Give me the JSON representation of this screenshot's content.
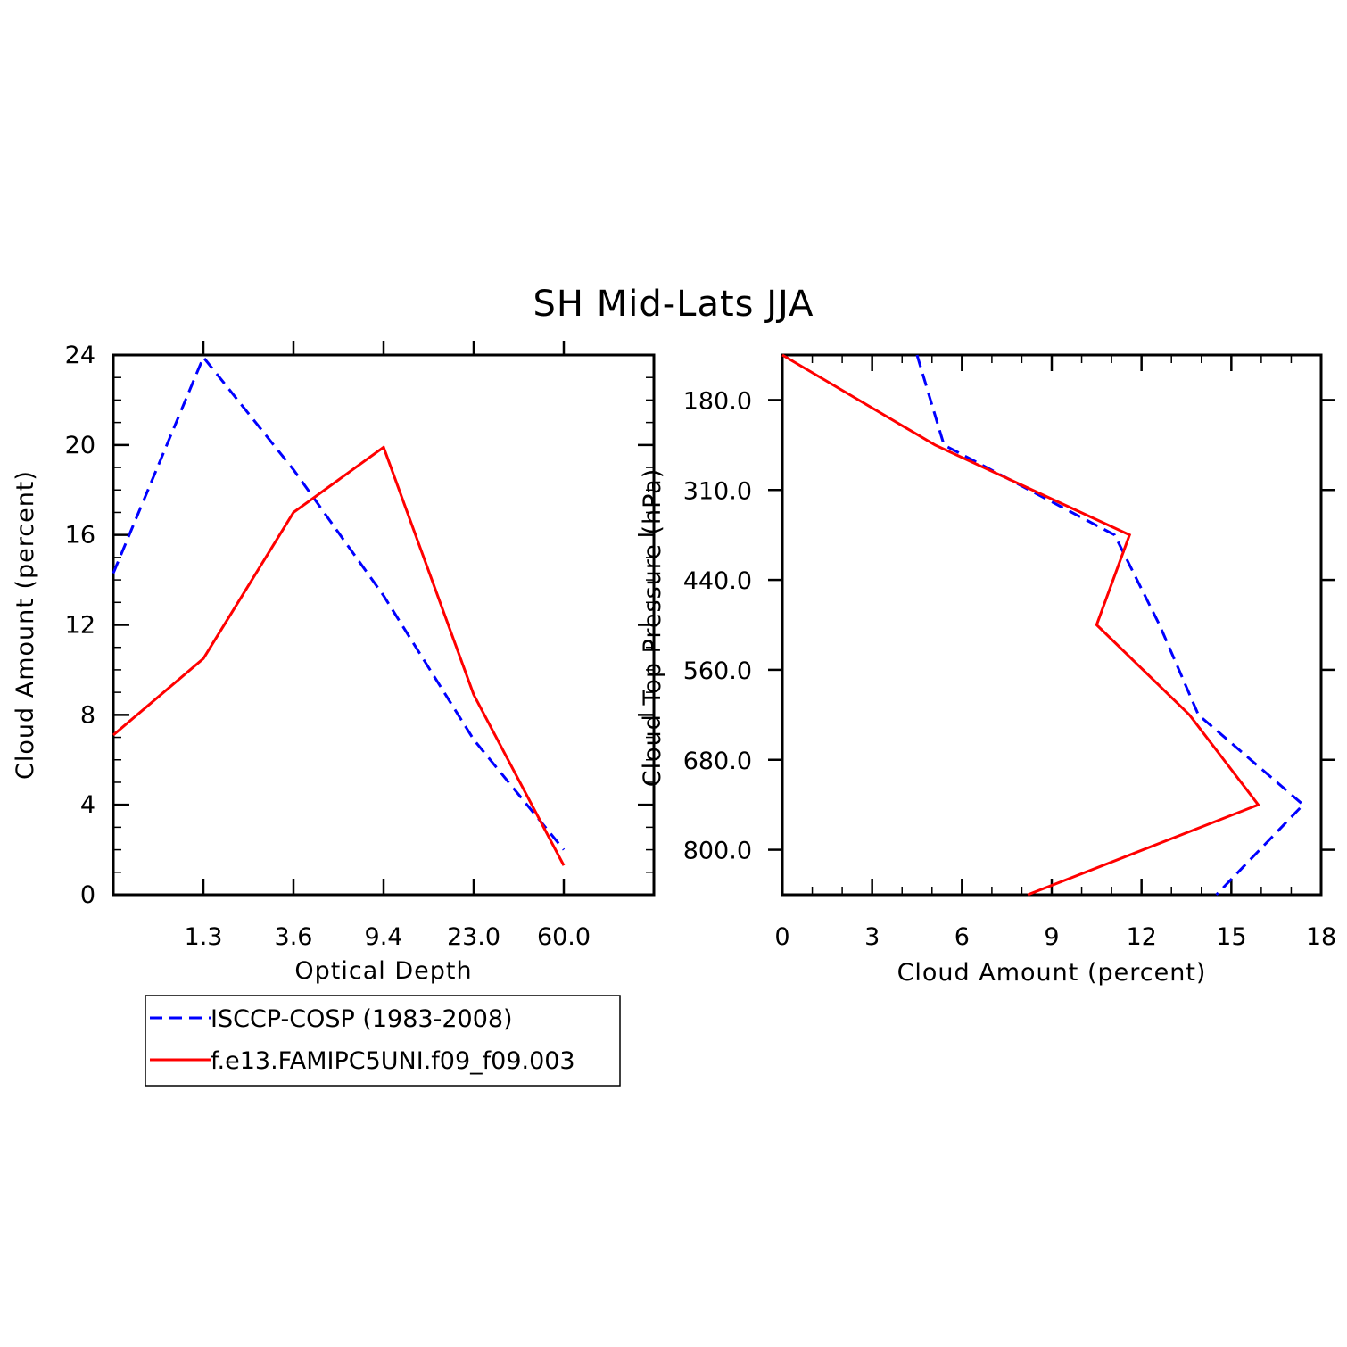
{
  "title": "SH Mid-Lats JJA",
  "colors": {
    "obs": "#0000ff",
    "model": "#ff0000"
  },
  "legend": {
    "entries": [
      {
        "label": "ISCCP-COSP (1983-2008)",
        "color": "#0000ff",
        "dash": true
      },
      {
        "label": "f.e13.FAMIPC5UNI.f09_f09.003",
        "color": "#ff0000",
        "dash": false
      }
    ]
  },
  "chart_data": [
    {
      "type": "line",
      "xlabel": "Optical Depth",
      "ylabel": "Cloud Amount (percent)",
      "x_tick_labels": [
        "1.3",
        "3.6",
        "9.4",
        "23.0",
        "60.0"
      ],
      "x_bins": [
        0,
        1,
        2,
        3,
        4,
        5,
        6
      ],
      "yticks": [
        0,
        4,
        8,
        12,
        16,
        20,
        24
      ],
      "ylim": [
        0,
        24
      ],
      "series": [
        {
          "name": "ISCCP-COSP (1983-2008)",
          "values": [
            14.3,
            23.9,
            18.9,
            13.3,
            6.9,
            2.0
          ]
        },
        {
          "name": "f.e13.FAMIPC5UNI.f09_f09.003",
          "values": [
            7.1,
            10.5,
            17.0,
            19.9,
            8.9,
            1.3
          ]
        }
      ]
    },
    {
      "type": "line",
      "xlabel": "Cloud Amount (percent)",
      "ylabel": "Cloud Top Pressure (hPa)",
      "xticks": [
        0,
        3,
        6,
        9,
        12,
        15,
        18
      ],
      "xlim": [
        0,
        18
      ],
      "y_tick_labels": [
        "180.0",
        "310.0",
        "440.0",
        "560.0",
        "680.0",
        "800.0"
      ],
      "y_levels": [
        0,
        1,
        2,
        3,
        4,
        5,
        6
      ],
      "series": [
        {
          "name": "ISCCP-COSP (1983-2008)",
          "values": [
            4.5,
            5.4,
            11.1,
            12.6,
            13.9,
            17.4,
            14.5
          ]
        },
        {
          "name": "f.e13.FAMIPC5UNI.f09_f09.003",
          "values": [
            0.0,
            5.1,
            11.6,
            10.5,
            13.6,
            15.9,
            8.2
          ]
        }
      ]
    }
  ]
}
